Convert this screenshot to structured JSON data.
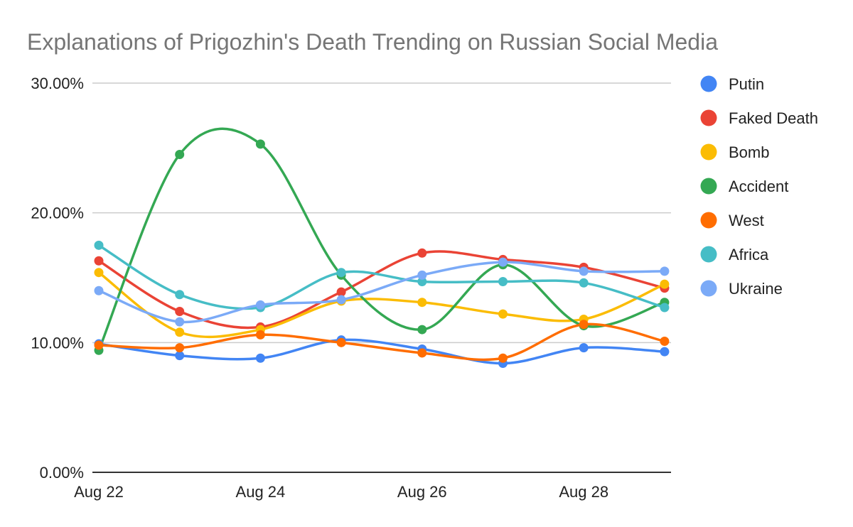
{
  "chart_data": {
    "type": "line",
    "title": "Explanations of Prigozhin's Death Trending on Russian Social Media",
    "xlabel": "",
    "ylabel": "",
    "x": [
      "Aug 22",
      "Aug 23",
      "Aug 24",
      "Aug 25",
      "Aug 26",
      "Aug 27",
      "Aug 28",
      "Aug 29"
    ],
    "x_tick_labels": [
      "Aug 22",
      "",
      "Aug 24",
      "",
      "Aug 26",
      "",
      "Aug 28",
      ""
    ],
    "ylim": [
      0,
      30
    ],
    "y_ticks": [
      0,
      10,
      20,
      30
    ],
    "y_tick_labels": [
      "0.00%",
      "10.00%",
      "20.00%",
      "30.00%"
    ],
    "grid": true,
    "legend_position": "right",
    "series": [
      {
        "name": "Putin",
        "color": "#4285f4",
        "values": [
          9.9,
          9.0,
          8.8,
          10.2,
          9.5,
          8.4,
          9.6,
          9.3
        ]
      },
      {
        "name": "Faked Death",
        "color": "#ea4335",
        "values": [
          16.3,
          12.4,
          11.2,
          13.9,
          16.9,
          16.4,
          15.8,
          14.2
        ]
      },
      {
        "name": "Bomb",
        "color": "#fbbc04",
        "values": [
          15.4,
          10.8,
          11.0,
          13.2,
          13.1,
          12.2,
          11.8,
          14.5
        ]
      },
      {
        "name": "Accident",
        "color": "#34a853",
        "values": [
          9.4,
          24.5,
          25.3,
          15.2,
          11.0,
          16.0,
          11.3,
          13.1
        ]
      },
      {
        "name": "West",
        "color": "#ff6d01",
        "values": [
          9.8,
          9.6,
          10.6,
          10.0,
          9.2,
          8.8,
          11.4,
          10.1
        ]
      },
      {
        "name": "Africa",
        "color": "#46bdc6",
        "values": [
          17.5,
          13.7,
          12.7,
          15.4,
          14.7,
          14.7,
          14.6,
          12.7
        ]
      },
      {
        "name": "Ukraine",
        "color": "#7baaf7",
        "values": [
          14.0,
          11.6,
          12.9,
          13.3,
          15.2,
          16.2,
          15.5,
          15.5
        ]
      }
    ]
  }
}
